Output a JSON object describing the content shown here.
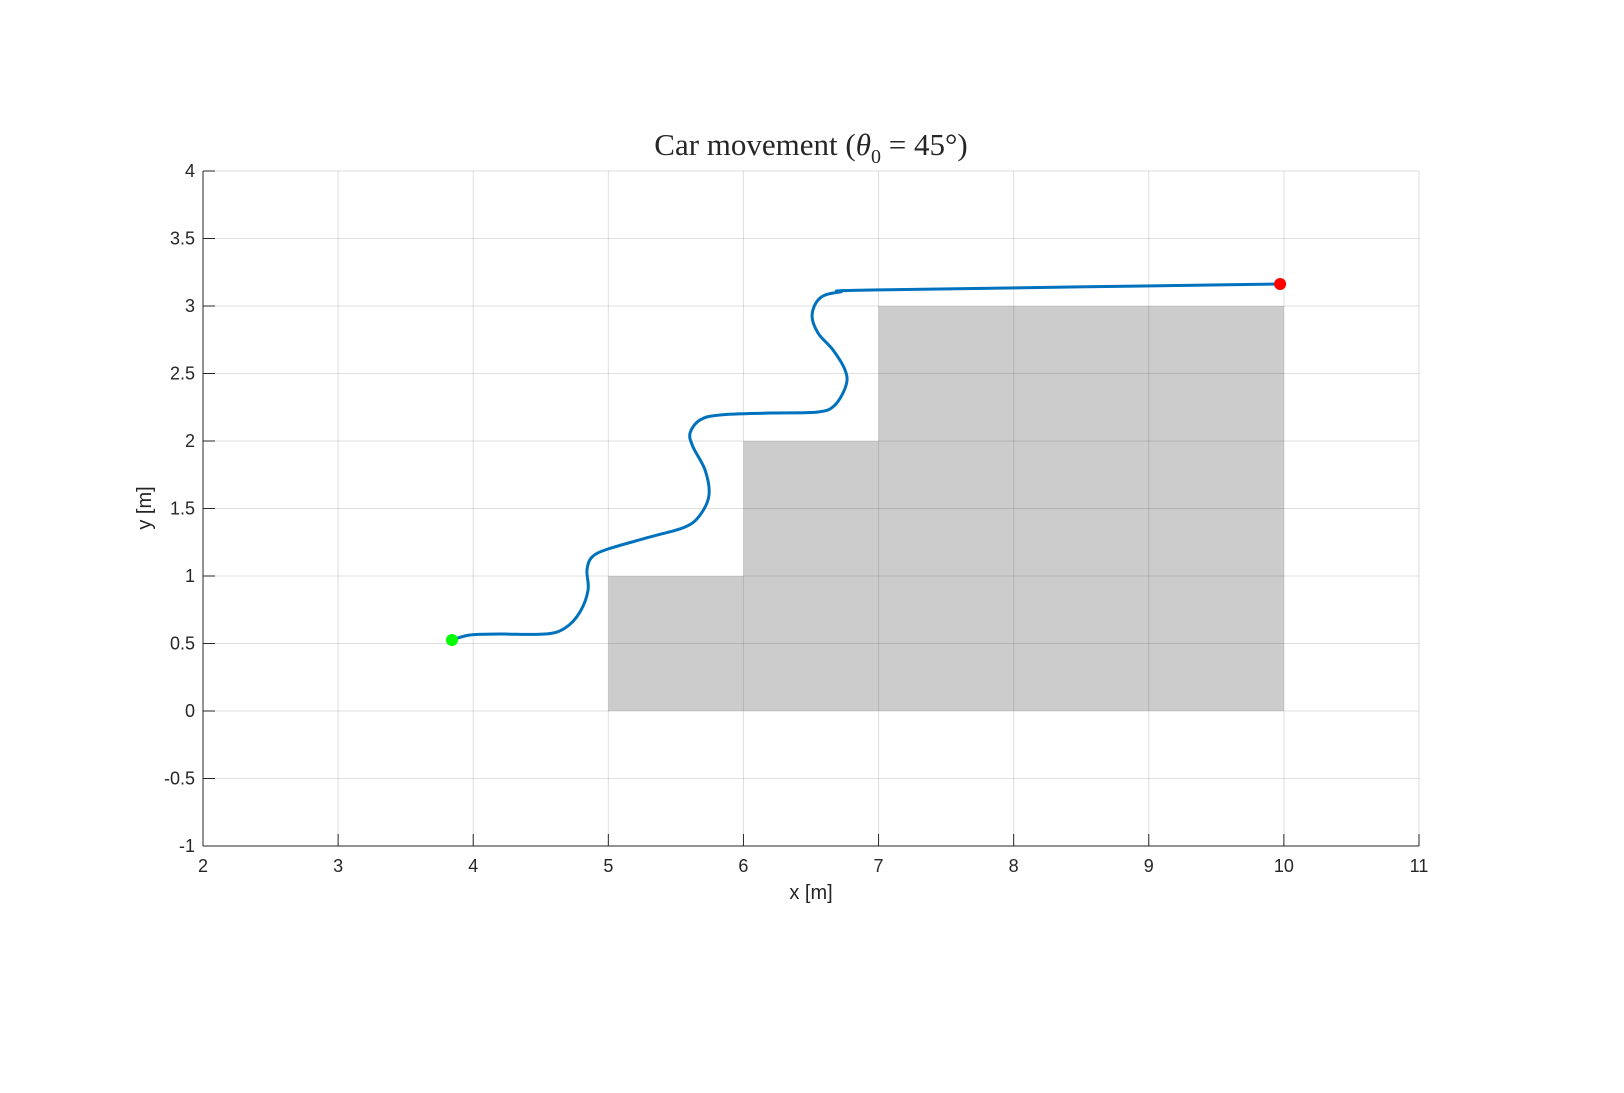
{
  "chart_data": {
    "type": "line",
    "title": "Car movement (θ0 = 45°)",
    "title_parts": {
      "prefix": "Car movement (",
      "theta": "θ",
      "sub": "0",
      "suffix": " = 45°)"
    },
    "xlabel": "x [m]",
    "ylabel": "y [m]",
    "xlim": [
      2,
      11
    ],
    "ylim": [
      -1,
      4
    ],
    "xticks": [
      2,
      3,
      4,
      5,
      6,
      7,
      8,
      9,
      10,
      11
    ],
    "yticks": [
      -1,
      -0.5,
      0,
      0.5,
      1,
      1.5,
      2,
      2.5,
      3,
      3.5,
      4
    ],
    "grid": true,
    "obstacles": [
      {
        "x": [
          5,
          6
        ],
        "y": [
          0,
          1
        ]
      },
      {
        "x": [
          6,
          7
        ],
        "y": [
          0,
          2
        ]
      },
      {
        "x": [
          7,
          10
        ],
        "y": [
          0,
          3
        ]
      }
    ],
    "obstacle_color": "#cccccc",
    "series": [
      {
        "color": "#0072bd",
        "x": [
          3.843,
          3.976,
          4.198,
          4.531,
          4.68,
          4.79,
          4.85,
          4.842,
          4.88,
          4.998,
          5.309,
          5.568,
          5.679,
          5.745,
          5.716,
          5.627,
          5.605,
          5.679,
          5.827,
          6.197,
          6.552,
          6.678,
          6.76,
          6.752,
          6.663,
          6.552,
          6.508,
          6.567,
          6.715,
          7.011,
          9.972
        ],
        "y": [
          0.526,
          0.563,
          0.57,
          0.57,
          0.615,
          0.733,
          0.896,
          1.044,
          1.141,
          1.2,
          1.289,
          1.363,
          1.452,
          1.6,
          1.785,
          1.956,
          2.059,
          2.156,
          2.193,
          2.207,
          2.215,
          2.267,
          2.415,
          2.526,
          2.674,
          2.8,
          2.933,
          3.059,
          3.104,
          3.119,
          3.163
        ]
      }
    ],
    "start_point": {
      "x": 3.843,
      "y": 0.526,
      "color": "#00ff00"
    },
    "end_point": {
      "x": 9.972,
      "y": 3.163,
      "color": "#ff0000"
    }
  }
}
